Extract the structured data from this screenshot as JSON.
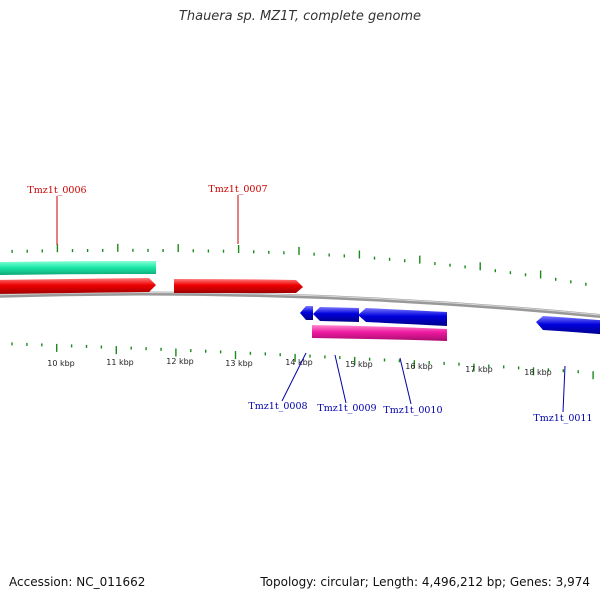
{
  "title": "Thauera sp. MZ1T, complete genome",
  "accession": "Accession: NC_011662",
  "summary": "Topology: circular; Length: 4,496,212 bp; Genes: 3,974",
  "colors": {
    "forward_label": "#cc0000",
    "reverse_label": "#0000aa",
    "forward_cds": "#ee0000",
    "forward_other": "#1de9a8",
    "reverse_cds": "#0000dd",
    "reverse_other": "#ee1aa0",
    "tick": "#1a8a1a",
    "backbone": "#888888"
  },
  "scale_labels": [
    "10 kbp",
    "11 kbp",
    "12 kbp",
    "13 kbp",
    "14 kbp",
    "15 kbp",
    "16 kbp",
    "17 kbp",
    "18 kbp"
  ],
  "genes_forward": [
    "Tmz1t_0006",
    "Tmz1t_0007"
  ],
  "genes_reverse": [
    "Tmz1t_0008",
    "Tmz1t_0009",
    "Tmz1t_0010",
    "Tmz1t_0011"
  ]
}
